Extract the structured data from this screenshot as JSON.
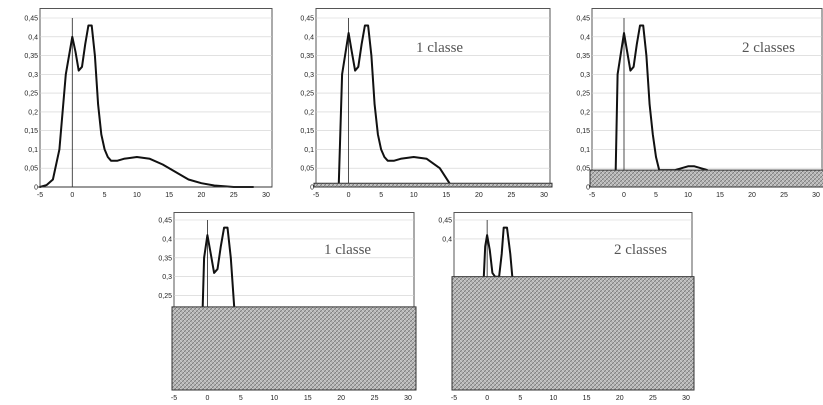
{
  "chart_data": [
    {
      "type": "line",
      "panel_label": "",
      "threshold": 0,
      "xlim": [
        -5,
        30
      ],
      "ylim": [
        0,
        0.45
      ],
      "x_ticks": [
        "-5",
        "0",
        "5",
        "10",
        "15",
        "20",
        "25",
        "30"
      ],
      "y_ticks": [
        "0",
        "0,05",
        "0,1",
        "0,15",
        "0,2",
        "0,25",
        "0,3",
        "0,35",
        "0,4",
        "0,45"
      ],
      "curve": {
        "x": [
          -5,
          -4,
          -3,
          -2,
          -1,
          0,
          0.5,
          1,
          1.5,
          2,
          2.5,
          3,
          3.5,
          4,
          4.5,
          5,
          5.5,
          6,
          7,
          8,
          10,
          12,
          14,
          16,
          18,
          20,
          22,
          25,
          28
        ],
        "y": [
          0,
          0.005,
          0.02,
          0.1,
          0.3,
          0.4,
          0.36,
          0.31,
          0.32,
          0.38,
          0.43,
          0.43,
          0.35,
          0.22,
          0.14,
          0.1,
          0.08,
          0.07,
          0.07,
          0.075,
          0.08,
          0.075,
          0.06,
          0.04,
          0.02,
          0.01,
          0.004,
          0,
          0
        ]
      }
    },
    {
      "type": "line",
      "panel_label": "1 classe",
      "threshold": 0.01,
      "xlim": [
        -5,
        30
      ],
      "ylim": [
        0,
        0.45
      ],
      "x_ticks": [
        "-5",
        "0",
        "5",
        "10",
        "15",
        "20",
        "25",
        "30"
      ],
      "y_ticks": [
        "0",
        "0,05",
        "0,1",
        "0,15",
        "0,2",
        "0,25",
        "0,3",
        "0,35",
        "0,4",
        "0,45"
      ],
      "curve": {
        "x": [
          -1.5,
          -1,
          0,
          0.5,
          1,
          1.5,
          2,
          2.5,
          3,
          3.5,
          4,
          4.5,
          5,
          5.5,
          6,
          7,
          8,
          10,
          12,
          14,
          15.5
        ],
        "y": [
          0.01,
          0.3,
          0.41,
          0.36,
          0.31,
          0.32,
          0.38,
          0.43,
          0.43,
          0.35,
          0.22,
          0.14,
          0.1,
          0.08,
          0.07,
          0.07,
          0.075,
          0.08,
          0.075,
          0.05,
          0.01
        ]
      }
    },
    {
      "type": "line",
      "panel_label": "2 classes",
      "threshold": 0.045,
      "xlim": [
        -5,
        30
      ],
      "ylim": [
        0,
        0.45
      ],
      "x_ticks": [
        "-5",
        "0",
        "5",
        "10",
        "15",
        "20",
        "25",
        "30"
      ],
      "y_ticks": [
        "0",
        "0,05",
        "0,1",
        "0,15",
        "0,2",
        "0,25",
        "0,3",
        "0,35",
        "0,4",
        "0,45"
      ],
      "curve": {
        "x": [
          -1.3,
          -1,
          0,
          0.5,
          1,
          1.5,
          2,
          2.5,
          3,
          3.5,
          4,
          4.5,
          5,
          5.5,
          8,
          9,
          10,
          11,
          12,
          13
        ],
        "y": [
          0.045,
          0.3,
          0.41,
          0.36,
          0.31,
          0.32,
          0.38,
          0.43,
          0.43,
          0.35,
          0.22,
          0.14,
          0.08,
          0.045,
          0.045,
          0.05,
          0.055,
          0.055,
          0.05,
          0.045
        ]
      }
    },
    {
      "type": "line",
      "panel_label": "1 classe",
      "threshold": 0.22,
      "xlim": [
        -5,
        30
      ],
      "ylim": [
        0,
        0.45
      ],
      "x_ticks": [
        "-5",
        "0",
        "5",
        "10",
        "15",
        "20",
        "25",
        "30"
      ],
      "y_ticks": [
        "0,25",
        "0,3",
        "0,35",
        "0,4",
        "0,45"
      ],
      "curve": {
        "x": [
          -0.7,
          -0.5,
          0,
          0.5,
          1,
          1.5,
          2,
          2.5,
          3,
          3.5,
          4
        ],
        "y": [
          0.22,
          0.35,
          0.41,
          0.36,
          0.31,
          0.32,
          0.38,
          0.43,
          0.43,
          0.35,
          0.22
        ]
      }
    },
    {
      "type": "line",
      "panel_label": "2 classes",
      "threshold": 0.3,
      "xlim": [
        -5,
        30
      ],
      "ylim": [
        0,
        0.45
      ],
      "x_ticks": [
        "-5",
        "0",
        "5",
        "10",
        "15",
        "20",
        "25",
        "30"
      ],
      "y_ticks": [
        "0,4",
        "0,45"
      ],
      "curve": {
        "x": [
          -0.5,
          -0.3,
          0,
          0.4,
          0.8,
          1.2,
          1.8,
          2.2,
          2.5,
          3,
          3.5,
          3.8
        ],
        "y": [
          0.3,
          0.38,
          0.41,
          0.37,
          0.31,
          0.3,
          0.3,
          0.36,
          0.43,
          0.43,
          0.36,
          0.3
        ]
      }
    }
  ]
}
